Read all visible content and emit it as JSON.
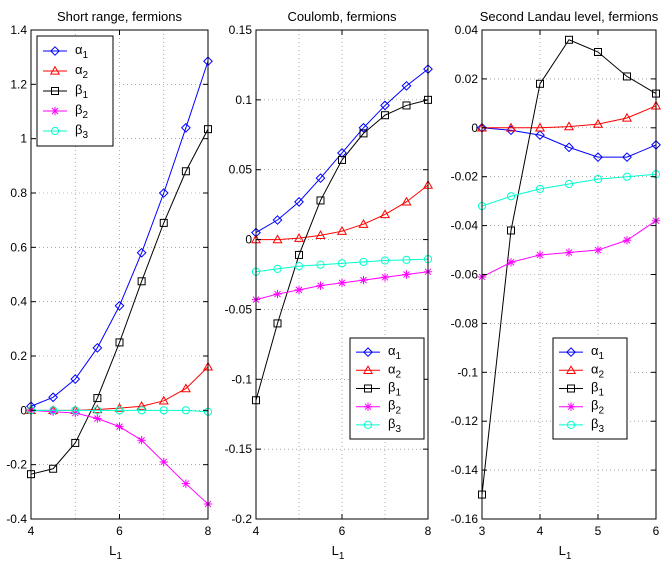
{
  "chart_data": [
    {
      "type": "line",
      "title": "Short range, fermions",
      "xlabel": "L",
      "xlabel_sub": "1",
      "ylabel": "",
      "xlim": [
        4,
        8
      ],
      "ylim": [
        -0.4,
        1.4
      ],
      "xticks": [
        4,
        6,
        8
      ],
      "yticks": [
        -0.4,
        -0.2,
        0,
        0.2,
        0.4,
        0.6,
        0.8,
        1,
        1.2,
        1.4
      ],
      "ytick_labels": [
        "-0.4",
        "-0.2",
        "0",
        "0.2",
        "0.4",
        "0.6",
        "0.8",
        "1",
        "1.2",
        "1.4"
      ],
      "xtick_labels": [
        "4",
        "6",
        "8"
      ],
      "grid": true,
      "legend_position": "top-left",
      "x": [
        4,
        4.5,
        5,
        5.5,
        6,
        6.5,
        7,
        7.5,
        8
      ],
      "series": [
        {
          "name": "α",
          "sub": "1",
          "color": "#0000ff",
          "marker": "diamond",
          "values": [
            0.015,
            0.048,
            0.115,
            0.23,
            0.385,
            0.58,
            0.8,
            1.04,
            1.285
          ]
        },
        {
          "name": "α",
          "sub": "2",
          "color": "#ff0000",
          "marker": "triangle",
          "values": [
            0.0,
            0.0,
            0.0,
            0.003,
            0.008,
            0.015,
            0.035,
            0.08,
            0.16
          ]
        },
        {
          "name": "β",
          "sub": "1",
          "color": "#000000",
          "marker": "square",
          "values": [
            -0.235,
            -0.215,
            -0.12,
            0.045,
            0.25,
            0.475,
            0.69,
            0.88,
            1.035
          ]
        },
        {
          "name": "β",
          "sub": "2",
          "color": "#ff00ff",
          "marker": "star",
          "values": [
            0.0,
            -0.005,
            -0.01,
            -0.03,
            -0.06,
            -0.11,
            -0.19,
            -0.27,
            -0.345
          ]
        },
        {
          "name": "β",
          "sub": "3",
          "color": "#00ffcc",
          "marker": "circle",
          "values": [
            0.0,
            0.0,
            0.0,
            0.0,
            0.0,
            0.0,
            0.0,
            0.0,
            -0.005
          ]
        }
      ]
    },
    {
      "type": "line",
      "title": "Coulomb, fermions",
      "xlabel": "L",
      "xlabel_sub": "1",
      "ylabel": "",
      "xlim": [
        4,
        8
      ],
      "ylim": [
        -0.2,
        0.15
      ],
      "xticks": [
        4,
        6,
        8
      ],
      "yticks": [
        -0.2,
        -0.15,
        -0.1,
        -0.05,
        0,
        0.05,
        0.1,
        0.15
      ],
      "ytick_labels": [
        "-0.2",
        "-0.15",
        "-0.1",
        "-0.05",
        "0",
        "0.05",
        "0.1",
        "0.15"
      ],
      "xtick_labels": [
        "4",
        "6",
        "8"
      ],
      "grid": true,
      "legend_position": "bottom-right",
      "x": [
        4,
        4.5,
        5,
        5.5,
        6,
        6.5,
        7,
        7.5,
        8
      ],
      "series": [
        {
          "name": "α",
          "sub": "1",
          "color": "#0000ff",
          "marker": "diamond",
          "values": [
            0.005,
            0.014,
            0.027,
            0.044,
            0.062,
            0.08,
            0.096,
            0.11,
            0.122
          ]
        },
        {
          "name": "α",
          "sub": "2",
          "color": "#ff0000",
          "marker": "triangle",
          "values": [
            0.0,
            0.0,
            0.001,
            0.003,
            0.006,
            0.011,
            0.018,
            0.027,
            0.039
          ]
        },
        {
          "name": "β",
          "sub": "1",
          "color": "#000000",
          "marker": "square",
          "values": [
            -0.115,
            -0.06,
            -0.011,
            0.028,
            0.057,
            0.076,
            0.089,
            0.096,
            0.1
          ]
        },
        {
          "name": "β",
          "sub": "2",
          "color": "#ff00ff",
          "marker": "star",
          "values": [
            -0.043,
            -0.039,
            -0.036,
            -0.033,
            -0.031,
            -0.029,
            -0.027,
            -0.025,
            -0.023
          ]
        },
        {
          "name": "β",
          "sub": "3",
          "color": "#00ffcc",
          "marker": "circle",
          "values": [
            -0.023,
            -0.021,
            -0.019,
            -0.018,
            -0.017,
            -0.016,
            -0.015,
            -0.0145,
            -0.014
          ]
        }
      ]
    },
    {
      "type": "line",
      "title": "Second Landau level, fermions",
      "xlabel": "L",
      "xlabel_sub": "1",
      "ylabel": "",
      "xlim": [
        3,
        6
      ],
      "ylim": [
        -0.16,
        0.04
      ],
      "xticks": [
        3,
        4,
        5,
        6
      ],
      "yticks": [
        -0.16,
        -0.14,
        -0.12,
        -0.1,
        -0.08,
        -0.06,
        -0.04,
        -0.02,
        0,
        0.02,
        0.04
      ],
      "ytick_labels": [
        "-0.16",
        "-0.14",
        "-0.12",
        "-0.1",
        "-0.08",
        "-0.06",
        "-0.04",
        "-0.02",
        "0",
        "0.02",
        "0.04"
      ],
      "xtick_labels": [
        "3",
        "4",
        "5",
        "6"
      ],
      "grid": true,
      "legend_position": "bottom-right",
      "x": [
        3,
        3.5,
        4,
        4.5,
        5,
        5.5,
        6
      ],
      "series": [
        {
          "name": "α",
          "sub": "1",
          "color": "#0000ff",
          "marker": "diamond",
          "values": [
            0.0,
            -0.001,
            -0.003,
            -0.008,
            -0.012,
            -0.012,
            -0.007
          ]
        },
        {
          "name": "α",
          "sub": "2",
          "color": "#ff0000",
          "marker": "triangle",
          "values": [
            0.0,
            0.0,
            0.0,
            0.0005,
            0.0015,
            0.004,
            0.009
          ]
        },
        {
          "name": "β",
          "sub": "1",
          "color": "#000000",
          "marker": "square",
          "values": [
            -0.15,
            -0.042,
            0.018,
            0.036,
            0.031,
            0.021,
            0.014
          ]
        },
        {
          "name": "β",
          "sub": "2",
          "color": "#ff00ff",
          "marker": "star",
          "values": [
            -0.061,
            -0.055,
            -0.052,
            -0.051,
            -0.05,
            -0.046,
            -0.038
          ]
        },
        {
          "name": "β",
          "sub": "3",
          "color": "#00ffcc",
          "marker": "circle",
          "values": [
            -0.032,
            -0.028,
            -0.025,
            -0.023,
            -0.021,
            -0.02,
            -0.019
          ]
        }
      ]
    }
  ]
}
